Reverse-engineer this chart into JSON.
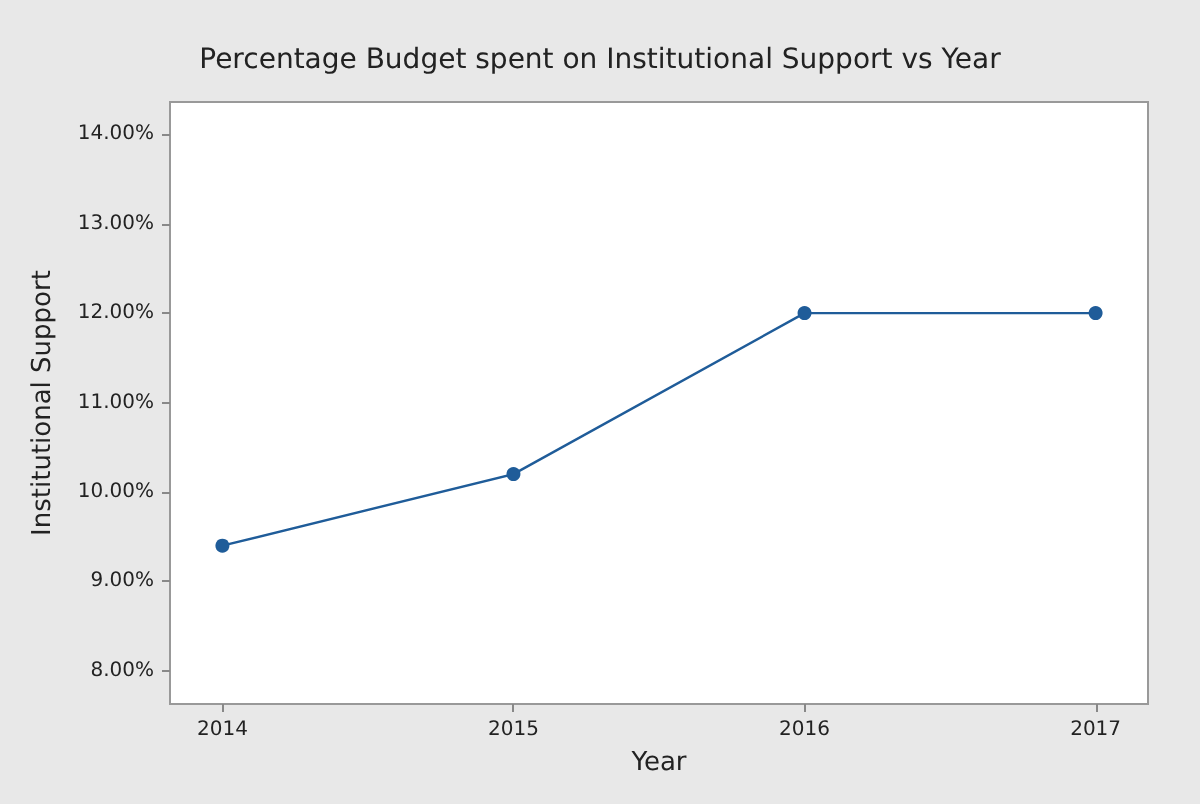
{
  "chart_data": {
    "type": "line",
    "title": "Percentage Budget spent on Institutional Support vs Year",
    "xlabel": "Year",
    "ylabel": "Institutional Support",
    "x": [
      2014,
      2015,
      2016,
      2017
    ],
    "series": [
      {
        "color": "#1f5c99",
        "values": [
          9.4,
          10.2,
          12.0,
          12.0
        ]
      }
    ],
    "xlim": [
      2013.82,
      2017.18
    ],
    "xticks": [
      2014,
      2015,
      2016,
      2017
    ],
    "ylim": [
      7.63,
      14.36
    ],
    "yticks": [
      {
        "value": 8,
        "label": "8.00%"
      },
      {
        "value": 9,
        "label": "9.00%"
      },
      {
        "value": 10,
        "label": "10.00%"
      },
      {
        "value": 11,
        "label": "11.00%"
      },
      {
        "value": 12,
        "label": "12.00%"
      },
      {
        "value": 13,
        "label": "13.00%"
      },
      {
        "value": 14,
        "label": "14.00%"
      }
    ],
    "grid": false,
    "marker": "circle",
    "line_style": "solid"
  }
}
